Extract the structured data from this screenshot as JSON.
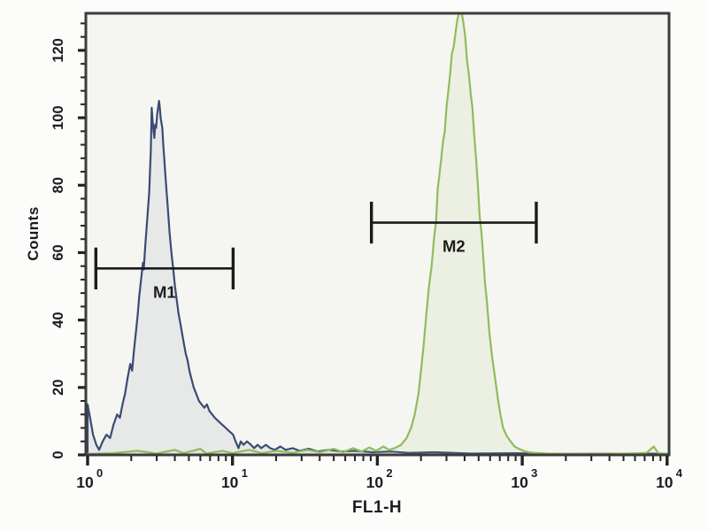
{
  "figure": {
    "bg_color": "#fcfcfb",
    "plot_bg_color": "#f5f6f1",
    "frame_color": "#3b3b3b",
    "tick_color": "#222222",
    "text_color": "#1c1c1c"
  },
  "chart_data": {
    "type": "line",
    "subtype": "flow-cytometry-histogram-overlay",
    "title": "",
    "xlabel": "FL1-H",
    "ylabel": "Counts",
    "x_scale": "log",
    "xlim": [
      1,
      10000
    ],
    "ylim": [
      0,
      131
    ],
    "grid": false,
    "legend": "none",
    "y_major_ticks": [
      0,
      20,
      40,
      60,
      80,
      100,
      120
    ],
    "y_minor_step": 4,
    "x_major_ticks": [
      {
        "value": 1,
        "base": "10",
        "exponent": "0"
      },
      {
        "value": 10,
        "base": "10",
        "exponent": "1"
      },
      {
        "value": 100,
        "base": "10",
        "exponent": "2"
      },
      {
        "value": 1000,
        "base": "10",
        "exponent": "3"
      },
      {
        "value": 10000,
        "base": "10",
        "exponent": "4"
      }
    ],
    "x_minor_mantissas": [
      2,
      3,
      4,
      5,
      6,
      7,
      8,
      9
    ],
    "series": [
      {
        "name": "negative-control-population",
        "color": "#3b4b74",
        "fill": "rgba(59,75,116,0.07)",
        "points": [
          [
            1.0,
            0
          ],
          [
            1.0,
            15
          ],
          [
            1.04,
            11
          ],
          [
            1.09,
            6
          ],
          [
            1.15,
            3
          ],
          [
            1.2,
            1.5
          ],
          [
            1.27,
            4
          ],
          [
            1.35,
            6
          ],
          [
            1.43,
            5
          ],
          [
            1.51,
            9
          ],
          [
            1.6,
            12
          ],
          [
            1.67,
            11
          ],
          [
            1.74,
            15
          ],
          [
            1.81,
            18
          ],
          [
            1.89,
            23
          ],
          [
            1.97,
            27
          ],
          [
            2.03,
            25
          ],
          [
            2.09,
            31
          ],
          [
            2.15,
            36
          ],
          [
            2.21,
            41
          ],
          [
            2.27,
            47
          ],
          [
            2.34,
            52
          ],
          [
            2.41,
            57
          ],
          [
            2.44,
            55
          ],
          [
            2.51,
            63
          ],
          [
            2.58,
            70
          ],
          [
            2.66,
            78
          ],
          [
            2.7,
            85
          ],
          [
            2.73,
            90
          ],
          [
            2.77,
            103
          ],
          [
            2.81,
            99
          ],
          [
            2.85,
            96
          ],
          [
            2.89,
            94
          ],
          [
            2.93,
            98
          ],
          [
            2.97,
            97
          ],
          [
            3.02,
            101
          ],
          [
            3.11,
            105
          ],
          [
            3.15,
            103
          ],
          [
            3.19,
            100
          ],
          [
            3.28,
            97
          ],
          [
            3.33,
            92
          ],
          [
            3.38,
            88
          ],
          [
            3.43,
            84
          ],
          [
            3.48,
            80
          ],
          [
            3.58,
            73
          ],
          [
            3.68,
            66
          ],
          [
            3.79,
            60
          ],
          [
            3.9,
            55
          ],
          [
            4.01,
            50
          ],
          [
            4.12,
            46
          ],
          [
            4.24,
            42
          ],
          [
            4.37,
            39
          ],
          [
            4.49,
            36
          ],
          [
            4.62,
            33
          ],
          [
            4.76,
            30
          ],
          [
            4.9,
            28
          ],
          [
            5.04,
            25
          ],
          [
            5.18,
            23
          ],
          [
            5.4,
            20
          ],
          [
            5.63,
            18
          ],
          [
            5.87,
            16
          ],
          [
            6.12,
            15
          ],
          [
            6.39,
            14
          ],
          [
            6.66,
            15
          ],
          [
            6.94,
            13
          ],
          [
            7.25,
            12
          ],
          [
            7.55,
            11
          ],
          [
            8.0,
            10
          ],
          [
            8.47,
            9
          ],
          [
            8.97,
            8
          ],
          [
            9.5,
            7
          ],
          [
            10.1,
            6
          ],
          [
            10.5,
            4
          ],
          [
            11.0,
            2
          ],
          [
            11.4,
            4
          ],
          [
            11.9,
            3
          ],
          [
            12.6,
            4
          ],
          [
            13.4,
            3
          ],
          [
            14.1,
            2
          ],
          [
            14.9,
            3
          ],
          [
            15.8,
            2
          ],
          [
            17.0,
            3
          ],
          [
            18.2,
            2
          ],
          [
            19.6,
            1.5
          ],
          [
            21.4,
            2.5
          ],
          [
            23.3,
            1.5
          ],
          [
            26.0,
            2
          ],
          [
            29.1,
            1.2
          ],
          [
            33.6,
            1.8
          ],
          [
            38.8,
            1.0
          ],
          [
            46.0,
            1.5
          ],
          [
            56.7,
            1.0
          ],
          [
            70.2,
            1.2
          ],
          [
            93,
            0.8
          ],
          [
            123,
            1.0
          ],
          [
            164,
            0.6
          ],
          [
            251,
            0.8
          ],
          [
            444,
            0.4
          ],
          [
            894,
            0.5
          ],
          [
            2100,
            0.3
          ],
          [
            6600,
            0.4
          ],
          [
            10000,
            0.3
          ]
        ]
      },
      {
        "name": "stained-population",
        "color": "#8fbc5e",
        "fill": "rgba(143,188,94,0.10)",
        "points": [
          [
            1.0,
            0.3
          ],
          [
            1.5,
            0.5
          ],
          [
            2.2,
            1.2
          ],
          [
            3.0,
            0.4
          ],
          [
            4.0,
            1.5
          ],
          [
            4.6,
            0.5
          ],
          [
            6.0,
            1.8
          ],
          [
            6.6,
            0.4
          ],
          [
            8.5,
            1.2
          ],
          [
            10,
            0.5
          ],
          [
            13,
            1.5
          ],
          [
            16,
            0.5
          ],
          [
            20,
            1.2
          ],
          [
            26,
            0.6
          ],
          [
            33,
            1.5
          ],
          [
            40,
            0.8
          ],
          [
            50,
            1.8
          ],
          [
            58,
            0.8
          ],
          [
            68,
            2.0
          ],
          [
            78,
            1.0
          ],
          [
            88,
            2.2
          ],
          [
            98,
            1.2
          ],
          [
            110,
            2.5
          ],
          [
            120,
            1.5
          ],
          [
            132,
            2.0
          ],
          [
            146,
            3.0
          ],
          [
            159,
            5.0
          ],
          [
            171,
            8.0
          ],
          [
            181,
            12
          ],
          [
            192,
            18
          ],
          [
            200,
            25
          ],
          [
            208,
            32
          ],
          [
            217,
            41
          ],
          [
            227,
            50
          ],
          [
            237,
            56
          ],
          [
            247,
            65
          ],
          [
            254,
            69
          ],
          [
            261,
            79
          ],
          [
            268,
            83
          ],
          [
            276,
            88
          ],
          [
            284,
            93
          ],
          [
            292,
            96
          ],
          [
            300,
            103
          ],
          [
            309,
            108
          ],
          [
            318,
            113
          ],
          [
            327,
            119
          ],
          [
            336,
            121
          ],
          [
            346,
            125
          ],
          [
            356,
            129
          ],
          [
            366,
            131
          ],
          [
            382,
            131
          ],
          [
            393,
            128
          ],
          [
            404,
            124
          ],
          [
            416,
            117
          ],
          [
            428,
            113
          ],
          [
            441,
            107
          ],
          [
            453,
            103
          ],
          [
            466,
            95
          ],
          [
            480,
            88
          ],
          [
            494,
            80
          ],
          [
            508,
            71
          ],
          [
            523,
            66
          ],
          [
            538,
            59
          ],
          [
            553,
            51
          ],
          [
            569,
            46
          ],
          [
            594,
            36
          ],
          [
            620,
            29
          ],
          [
            648,
            23
          ],
          [
            677,
            17
          ],
          [
            707,
            12
          ],
          [
            738,
            8
          ],
          [
            784,
            5.5
          ],
          [
            832,
            4.0
          ],
          [
            883,
            2.5
          ],
          [
            949,
            1.8
          ],
          [
            1020,
            1.2
          ],
          [
            1100,
            0.8
          ],
          [
            1230,
            0.6
          ],
          [
            1480,
            0.4
          ],
          [
            2110,
            0.3
          ],
          [
            3710,
            0.3
          ],
          [
            5500,
            0.4
          ],
          [
            7200,
            0.6
          ],
          [
            8100,
            2.5
          ],
          [
            8700,
            0.5
          ],
          [
            10000,
            0.3
          ]
        ]
      }
    ],
    "markers": [
      {
        "label": "M1",
        "x_start": 1.14,
        "x_end": 10.1,
        "y": 55.3,
        "whisker_half_counts": 6.2,
        "color": "#1a1a1a"
      },
      {
        "label": "M2",
        "x_start": 91,
        "x_end": 1250,
        "y": 68.9,
        "whisker_half_counts": 6.2,
        "color": "#1a1a1a"
      }
    ]
  }
}
